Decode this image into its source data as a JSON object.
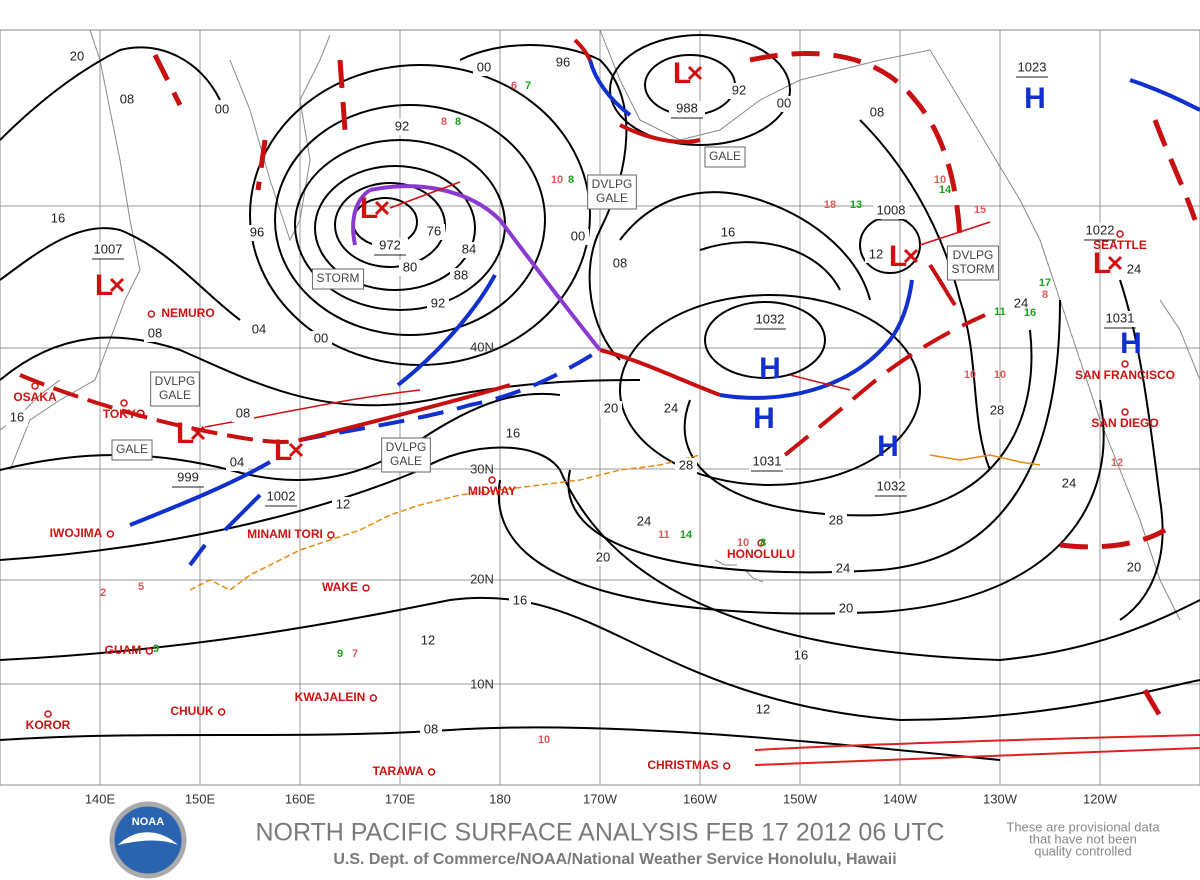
{
  "title": "NORTH PACIFIC SURFACE ANALYSIS FEB 17 2012 06 UTC",
  "subtitle": "U.S. Dept. of Commerce/NOAA/National Weather Service Honolulu, Hawaii",
  "disclaimer": [
    "These are provisional data",
    "that have not been",
    "quality controlled"
  ],
  "logo": "NOAA",
  "longitude_labels": [
    "140E",
    "150E",
    "160E",
    "170E",
    "180",
    "170W",
    "160W",
    "150W",
    "140W",
    "130W",
    "120W"
  ],
  "latitude_labels": [
    "40N",
    "30N",
    "20N",
    "10N"
  ],
  "places": [
    "NEMURO",
    "OSAKA",
    "TOKYO",
    "IWOJIMA",
    "MINAMI TORI",
    "GUAM",
    "WAKE",
    "KWAJALEIN",
    "CHUUK",
    "KOROR",
    "TARAWA",
    "MIDWAY",
    "HONOLULU",
    "CHRISTMAS",
    "SEATTLE",
    "SAN FRANCISCO",
    "SAN DIEGO"
  ],
  "highs": [
    "H",
    "H",
    "H",
    "H",
    "H"
  ],
  "lows": [
    "L",
    "L",
    "L",
    "L",
    "L",
    "L",
    "L"
  ],
  "pressure_centers": [
    "972",
    "988",
    "1007",
    "999",
    "1002",
    "1008",
    "1022",
    "1023",
    "1031",
    "1032",
    "1031",
    "1032"
  ],
  "isobar_labels": [
    "20",
    "08",
    "16",
    "00",
    "96",
    "92",
    "04",
    "00",
    "80",
    "76",
    "84",
    "88",
    "92",
    "08",
    "04",
    "12",
    "16",
    "20",
    "24",
    "28",
    "00",
    "08",
    "16",
    "24",
    "20",
    "16",
    "12",
    "08",
    "12",
    "16",
    "20",
    "24",
    "28",
    "28",
    "24",
    "12",
    "08",
    "92",
    "00",
    "00",
    "96",
    "08",
    "24",
    "24",
    "20",
    "16"
  ],
  "warnings": [
    [
      "STORM"
    ],
    [
      "DVLPG",
      "GALE"
    ],
    [
      "GALE"
    ],
    [
      "DVLPG",
      "GALE"
    ],
    [
      "GALE"
    ],
    [
      "DVLPG",
      "GALE"
    ],
    [
      "DVLPG",
      "STORM"
    ]
  ],
  "wind_reports": [
    {
      "text": "8",
      "color": "#e05a5a"
    },
    {
      "text": "8",
      "color": "#1aa31a"
    },
    {
      "text": "6",
      "color": "#e05a5a"
    },
    {
      "text": "7",
      "color": "#1aa31a"
    },
    {
      "text": "10",
      "color": "#e05a5a"
    },
    {
      "text": "8",
      "color": "#1aa31a"
    },
    {
      "text": "18",
      "color": "#e05a5a"
    },
    {
      "text": "13",
      "color": "#1aa31a"
    },
    {
      "text": "10",
      "color": "#e05a5a"
    },
    {
      "text": "14",
      "color": "#1aa31a"
    },
    {
      "text": "15",
      "color": "#e05a5a"
    },
    {
      "text": "11",
      "color": "#e05a5a"
    },
    {
      "text": "14",
      "color": "#1aa31a"
    },
    {
      "text": "10",
      "color": "#e05a5a"
    },
    {
      "text": "8",
      "color": "#1aa31a"
    },
    {
      "text": "7",
      "color": "#e05a5a"
    },
    {
      "text": "9",
      "color": "#1aa31a"
    },
    {
      "text": "9",
      "color": "#1aa31a"
    },
    {
      "text": "5",
      "color": "#e05a5a"
    },
    {
      "text": "2",
      "color": "#e05a5a"
    },
    {
      "text": "10",
      "color": "#e05a5a"
    },
    {
      "text": "10",
      "color": "#e05a5a"
    },
    {
      "text": "16",
      "color": "#1aa31a"
    },
    {
      "text": "8",
      "color": "#e05a5a"
    },
    {
      "text": "17",
      "color": "#1aa31a"
    },
    {
      "text": "10",
      "color": "#e05a5a"
    },
    {
      "text": "11",
      "color": "#1aa31a"
    },
    {
      "text": "12",
      "color": "#e05a5a"
    }
  ]
}
